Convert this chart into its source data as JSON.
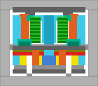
{
  "figsize": [
    1.4,
    1.24
  ],
  "dpi": 100,
  "colors": {
    "gray": "#b0b0b0",
    "dark_gray": "#606060",
    "mid_gray": "#909090",
    "light_gray": "#c8c8c8",
    "white": "#ffffff",
    "orange": "#e06020",
    "cyan_light": "#40c8e8",
    "cyan_mid": "#20a0c0",
    "teal": "#00b090",
    "teal_dark": "#008060",
    "green_spring": "#20c020",
    "green_dark": "#108010",
    "yellow": "#f0e000",
    "red": "#e02020",
    "blue": "#4080d0",
    "olive": "#808000"
  }
}
